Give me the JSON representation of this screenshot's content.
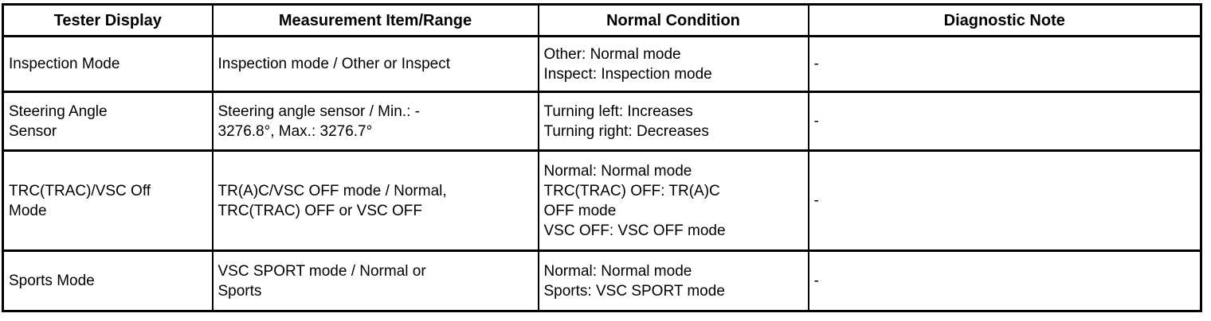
{
  "table": {
    "headers": [
      "Tester Display",
      "Measurement Item/Range",
      "Normal Condition",
      "Diagnostic Note"
    ],
    "rows": [
      {
        "cells": [
          "Inspection Mode",
          "Inspection mode / Other or Inspect",
          "Other: Normal mode\nInspect: Inspection mode",
          "-"
        ]
      },
      {
        "cells": [
          "Steering Angle\nSensor",
          "Steering angle sensor / Min.: -\n3276.8°, Max.: 3276.7°",
          "Turning left: Increases\nTurning right: Decreases",
          "-"
        ]
      },
      {
        "cells": [
          "TRC(TRAC)/VSC Off\nMode",
          "TR(A)C/VSC OFF mode / Normal,\nTRC(TRAC) OFF or VSC OFF",
          "Normal: Normal mode\nTRC(TRAC) OFF: TR(A)C\nOFF mode\nVSC OFF: VSC OFF mode",
          "-"
        ]
      },
      {
        "cells": [
          "Sports Mode",
          "VSC SPORT mode / Normal or\nSports",
          "Normal: Normal mode\nSports: VSC SPORT mode",
          "-"
        ]
      }
    ]
  },
  "colors": {
    "border": "#000000",
    "text": "#000000",
    "background": "#ffffff"
  }
}
